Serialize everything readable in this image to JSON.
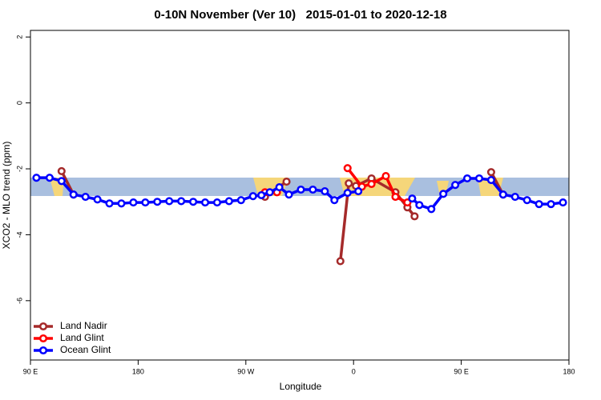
{
  "chart_data": {
    "type": "line",
    "title": "0-10N November (Ver 10)   2015-01-01 to 2020-12-18",
    "xlabel": "Longitude",
    "ylabel": "XCO2 - MLO trend (ppm)",
    "xlim": [
      90,
      540
    ],
    "xticks": [
      {
        "value": 90,
        "label": "90 E"
      },
      {
        "value": 180,
        "label": "180"
      },
      {
        "value": 270,
        "label": "90 W"
      },
      {
        "value": 360,
        "label": "0"
      },
      {
        "value": 450,
        "label": "90 E"
      },
      {
        "value": 540,
        "label": "180"
      }
    ],
    "ylim": [
      -7.8,
      2.2
    ],
    "yticks": [
      2,
      0,
      -2,
      -4,
      -6
    ],
    "legend": "bottom-left",
    "series": [
      {
        "name": "Land Nadir",
        "color": "#a52a2a",
        "x": [
          116,
          126,
          null,
          286,
          304,
          null,
          349,
          356,
          362,
          375,
          395,
          405,
          411,
          null,
          475,
          485
        ],
        "values": [
          -2.07,
          -2.78,
          null,
          -2.85,
          -2.39,
          null,
          -4.8,
          -2.44,
          -2.52,
          -2.29,
          -2.71,
          -3.17,
          -3.44,
          null,
          -2.1,
          -2.78
        ]
      },
      {
        "name": "Land Glint",
        "color": "#ff0000",
        "x": [
          286,
          296,
          null,
          355,
          367,
          375,
          387,
          395,
          405
        ],
        "values": [
          -2.71,
          -2.71,
          null,
          -1.98,
          -2.54,
          -2.46,
          -2.22,
          -2.85,
          -3.02
        ]
      },
      {
        "name": "Ocean Glint",
        "color": "#0000ff",
        "x": [
          95,
          106,
          116,
          126,
          136,
          146,
          156,
          166,
          176,
          186,
          196,
          206,
          216,
          226,
          236,
          246,
          256,
          266,
          276,
          283,
          290,
          298,
          306,
          316,
          326,
          336,
          344,
          355,
          364,
          null,
          409,
          415,
          425,
          435,
          445,
          455,
          465,
          475,
          485,
          495,
          505,
          515,
          525,
          535
        ],
        "values": [
          -2.27,
          -2.27,
          -2.37,
          -2.78,
          -2.85,
          -2.93,
          -3.05,
          -3.05,
          -3.02,
          -3.02,
          -3.0,
          -2.98,
          -2.98,
          -3.0,
          -3.02,
          -3.02,
          -2.98,
          -2.95,
          -2.83,
          -2.8,
          -2.71,
          -2.56,
          -2.78,
          -2.63,
          -2.63,
          -2.68,
          -2.95,
          -2.73,
          -2.68,
          null,
          -2.9,
          -3.1,
          -3.22,
          -2.76,
          -2.49,
          -2.29,
          -2.29,
          -2.34,
          -2.78,
          -2.85,
          -2.95,
          -3.07,
          -3.07,
          -3.02
        ]
      }
    ]
  }
}
